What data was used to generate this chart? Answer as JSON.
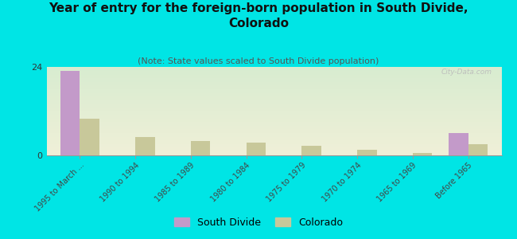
{
  "title": "Year of entry for the foreign-born population in South Divide,\nColorado",
  "subtitle": "(Note: State values scaled to South Divide population)",
  "categories": [
    "1995 to March ...",
    "1990 to 1994",
    "1985 to 1989",
    "1980 to 1984",
    "1975 to 1979",
    "1970 to 1974",
    "1965 to 1969",
    "Before 1965"
  ],
  "south_divide_values": [
    23,
    0,
    0,
    0,
    0,
    0,
    0,
    6
  ],
  "colorado_values": [
    10,
    5,
    4,
    3.5,
    2.5,
    1.5,
    0.7,
    3
  ],
  "south_divide_color": "#c39ac9",
  "colorado_color": "#c8c89a",
  "background_color": "#00e5e5",
  "ylim": [
    0,
    24
  ],
  "yticks": [
    0,
    24
  ],
  "bar_width": 0.35,
  "watermark": "City-Data.com",
  "title_fontsize": 11,
  "subtitle_fontsize": 8,
  "legend_labels": [
    "South Divide",
    "Colorado"
  ]
}
